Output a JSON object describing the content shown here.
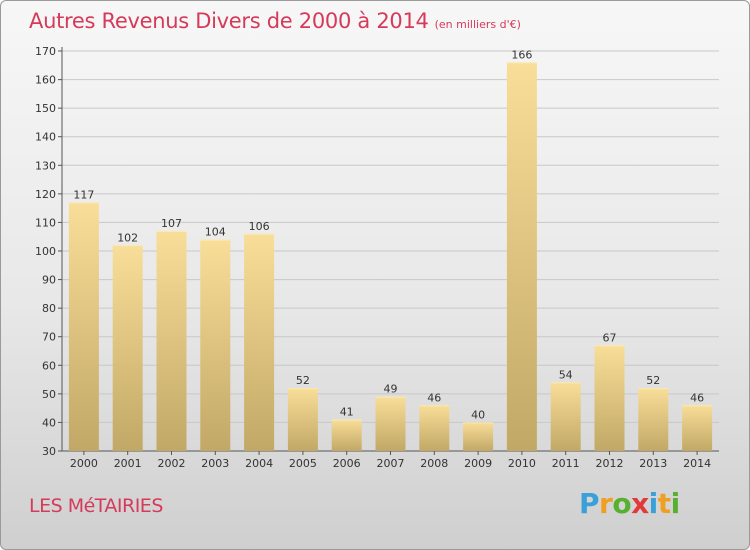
{
  "header": {
    "title": "Autres Revenus Divers de 2000 à 2014",
    "subtitle": "(en milliers d'€)"
  },
  "footer": {
    "place": "LES MéTAIRIES"
  },
  "logo": {
    "letters": [
      "P",
      "r",
      "o",
      "x",
      "i",
      "t",
      "i"
    ],
    "colors": [
      "#3aa0d8",
      "#f0a020",
      "#58b030",
      "#e03a3a",
      "#3aa0d8",
      "#f0a020",
      "#58b030"
    ]
  },
  "colors": {
    "title": "#d63a5a",
    "bar_light": "#f6dc94",
    "bar_dark": "#c4ab68",
    "grid": "#c8c8c8"
  },
  "chart_data": {
    "type": "bar",
    "title": "Autres Revenus Divers de 2000 à 2014",
    "subtitle": "(en milliers d'€)",
    "categories": [
      "2000",
      "2001",
      "2002",
      "2003",
      "2004",
      "2005",
      "2006",
      "2007",
      "2008",
      "2009",
      "2010",
      "2011",
      "2012",
      "2013",
      "2014"
    ],
    "values": [
      117,
      102,
      107,
      104,
      106,
      52,
      41,
      49,
      46,
      40,
      166,
      54,
      67,
      52,
      46
    ],
    "value_labels": [
      "117",
      "102",
      "107",
      "104",
      "106",
      "52",
      "41",
      "49",
      "46",
      "40",
      "166",
      "54",
      "67",
      "52",
      "46"
    ],
    "xlabel": "",
    "ylabel": "",
    "ylim": [
      30,
      170
    ],
    "yticks": [
      "30",
      "40",
      "50",
      "60",
      "70",
      "80",
      "90",
      "100",
      "110",
      "120",
      "130",
      "140",
      "150",
      "160",
      "170"
    ],
    "grid": true,
    "legend": "none"
  }
}
